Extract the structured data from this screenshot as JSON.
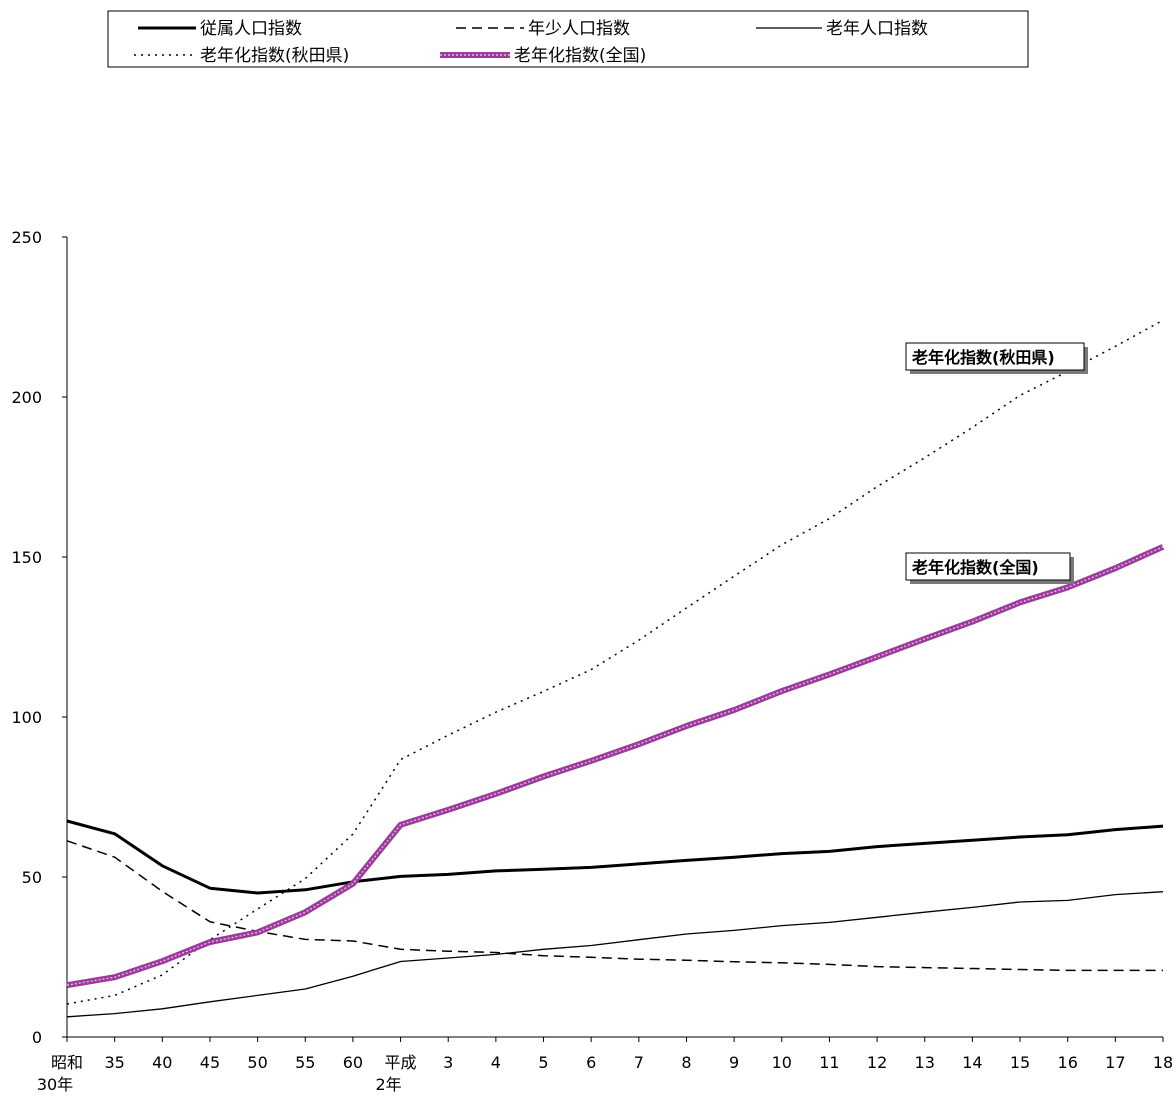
{
  "chart_data": {
    "type": "line",
    "x": [
      "昭和30年",
      "35",
      "40",
      "45",
      "50",
      "55",
      "60",
      "平成2年",
      "3",
      "4",
      "5",
      "6",
      "7",
      "8",
      "9",
      "10",
      "11",
      "12",
      "13",
      "14",
      "15",
      "16",
      "17",
      "18"
    ],
    "ylim": [
      0,
      250
    ],
    "yticks": [
      0,
      50,
      100,
      150,
      200,
      250
    ],
    "grid": false,
    "legend": "top",
    "series": [
      {
        "name": "従属人口指数",
        "style": "thick-solid",
        "color": "#000000",
        "values": [
          67.5,
          63.5,
          53.5,
          46.5,
          45,
          46,
          48.5,
          50.2,
          50.8,
          51.9,
          52.4,
          53,
          54.1,
          55.2,
          56.2,
          57.3,
          58,
          59.5,
          60.5,
          61.5,
          62.5,
          63.2,
          64.8,
          65.9
        ]
      },
      {
        "name": "年少人口指数",
        "style": "dashed",
        "color": "#000000",
        "values": [
          61.3,
          56.2,
          45.5,
          36,
          33,
          30.5,
          30,
          27.4,
          26.8,
          26.4,
          25.4,
          24.9,
          24.3,
          24,
          23.5,
          23.2,
          22.7,
          22,
          21.7,
          21.4,
          21.1,
          20.8,
          20.8,
          20.8
        ]
      },
      {
        "name": "老年人口指数",
        "style": "thin-solid",
        "color": "#000000",
        "values": [
          6.3,
          7.3,
          8.8,
          11,
          13,
          15,
          19,
          23.6,
          24.7,
          25.8,
          27.4,
          28.6,
          30.4,
          32.2,
          33.3,
          34.8,
          35.8,
          37.4,
          39,
          40.5,
          42.2,
          42.7,
          44.5,
          45.4
        ]
      },
      {
        "name": "老年化指数(秋田県)",
        "style": "dotted",
        "color": "#000000",
        "values": [
          10.3,
          13,
          19.4,
          30.4,
          40,
          49.5,
          63.4,
          86.7,
          94.3,
          101.5,
          108,
          114.8,
          124,
          134.1,
          144,
          153.8,
          162,
          172,
          181,
          190.5,
          200.5,
          208,
          215.8,
          224
        ]
      },
      {
        "name": "老年化指数(全国)",
        "style": "thick-purple",
        "color": "#a03ca0",
        "values": [
          16.2,
          18.7,
          23.7,
          29.7,
          32.7,
          39,
          47.9,
          66.3,
          71,
          76,
          81.4,
          86.3,
          91.5,
          97.2,
          102.2,
          108.1,
          113.3,
          118.8,
          124.4,
          129.8,
          135.8,
          140.5,
          146.5,
          153.2
        ]
      }
    ],
    "annotations": [
      {
        "text": "老年化指数(秋田県)",
        "series": 3
      },
      {
        "text": "老年化指数(全国)",
        "series": 4
      }
    ]
  }
}
